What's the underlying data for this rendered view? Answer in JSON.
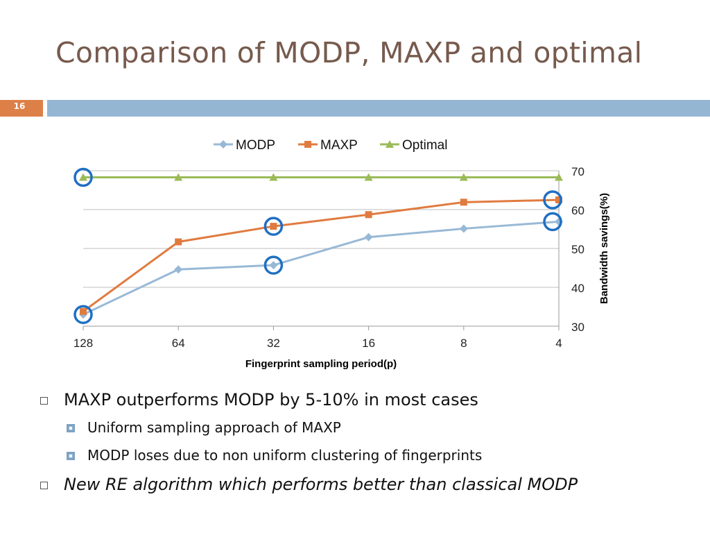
{
  "slide": {
    "title": "Comparison of MODP, MAXP and optimal",
    "number": "16"
  },
  "colors": {
    "title": "#765a4d",
    "accent_bar": "#94b6d2",
    "number_box": "#dd8047",
    "highlight_circle": "#1f6fc2"
  },
  "chart_data": {
    "type": "line",
    "title": "",
    "xlabel": "Fingerprint sampling period(p)",
    "ylabel": "Bandwidth savings(%)",
    "categories": [
      "128",
      "64",
      "32",
      "16",
      "8",
      "4"
    ],
    "ylim": [
      30,
      70
    ],
    "yticks": [
      30,
      40,
      50,
      60,
      70
    ],
    "y_axis_side": "right",
    "grid": true,
    "legend_position": "top",
    "series": [
      {
        "name": "MODP",
        "values": [
          33,
          44.6,
          45.7,
          52.9,
          55.1,
          56.9
        ],
        "color": "#98b9d6",
        "marker": "diamond"
      },
      {
        "name": "MAXP",
        "values": [
          33.8,
          51.7,
          55.7,
          58.7,
          61.9,
          62.5
        ],
        "color": "#e07b3f",
        "marker": "square"
      },
      {
        "name": "Optimal",
        "values": [
          68.3,
          68.3,
          68.3,
          68.3,
          68.3,
          68.3
        ],
        "color": "#9bbb59",
        "marker": "triangle"
      }
    ],
    "highlighted_points": [
      {
        "series": "Optimal",
        "category": "128"
      },
      {
        "series": "MODP",
        "category": "128"
      },
      {
        "series": "MAXP",
        "category": "32"
      },
      {
        "series": "MODP",
        "category": "32"
      },
      {
        "series": "MAXP",
        "category": "4"
      },
      {
        "series": "MODP",
        "category": "4"
      }
    ]
  },
  "bullets": [
    {
      "text": "MAXP outperforms MODP by 5-10% in most cases",
      "level": 1,
      "italic": false
    },
    {
      "text": "Uniform sampling approach of MAXP",
      "level": 2,
      "italic": false
    },
    {
      "text": "MODP loses due to non uniform clustering of fingerprints",
      "level": 2,
      "italic": false
    },
    {
      "text": "New RE algorithm which performs better than classical MODP",
      "level": 1,
      "italic": true
    }
  ]
}
